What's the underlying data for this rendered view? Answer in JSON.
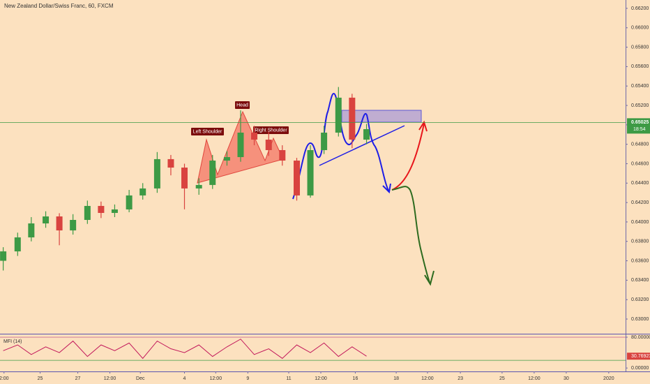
{
  "chart_data": {
    "type": "candlestick",
    "title": "New Zealand Dollar/Swiss Franc, 60, FXCM",
    "x": [
      4,
      22,
      39,
      57,
      74,
      91,
      109,
      126,
      143,
      161,
      178,
      196,
      213,
      230,
      248,
      265,
      283,
      300,
      317,
      335,
      352,
      370,
      387,
      404,
      422,
      439,
      457
    ],
    "open": [
      0.636,
      0.63697,
      0.63841,
      0.63985,
      0.64057,
      0.63913,
      0.64021,
      0.64165,
      0.64093,
      0.64129,
      0.64273,
      0.64345,
      0.64647,
      0.6456,
      0.64345,
      0.64381,
      0.64632,
      0.64668,
      0.6492,
      0.64848,
      0.6474,
      0.64632,
      0.64273,
      0.6474,
      0.6492,
      0.6528,
      0.64848
    ],
    "high": [
      0.6374,
      0.6389,
      0.6405,
      0.6411,
      0.6409,
      0.6408,
      0.6422,
      0.6421,
      0.6418,
      0.6433,
      0.644,
      0.6472,
      0.6469,
      0.646,
      0.6445,
      0.6469,
      0.6473,
      0.6515,
      0.6499,
      0.6493,
      0.6479,
      0.6466,
      0.6479,
      0.6499,
      0.6539,
      0.6532,
      0.6501
    ],
    "low": [
      0.635,
      0.6365,
      0.638,
      0.6394,
      0.6376,
      0.6387,
      0.6398,
      0.6404,
      0.6405,
      0.641,
      0.6423,
      0.643,
      0.6448,
      0.6413,
      0.6428,
      0.6434,
      0.6458,
      0.6462,
      0.6479,
      0.6468,
      0.6458,
      0.6422,
      0.6425,
      0.647,
      0.6488,
      0.6476,
      0.648
    ],
    "close": [
      0.63697,
      0.63841,
      0.63985,
      0.64057,
      0.63913,
      0.64021,
      0.64165,
      0.64093,
      0.64129,
      0.64273,
      0.64345,
      0.64647,
      0.6456,
      0.64345,
      0.64381,
      0.64632,
      0.64668,
      0.6492,
      0.64848,
      0.6474,
      0.64632,
      0.64273,
      0.6474,
      0.6492,
      0.6528,
      0.64848,
      0.64956
    ],
    "up_color": "#3d9a45",
    "down_color": "#d9433f",
    "xlim": [
      0,
      780
    ],
    "xticks": [
      {
        "value": 5,
        "label": "2:00"
      },
      {
        "value": 50,
        "label": "25"
      },
      {
        "value": 97,
        "label": "27"
      },
      {
        "value": 137,
        "label": "12:00"
      },
      {
        "value": 175,
        "label": "Dec"
      },
      {
        "value": 230,
        "label": "4"
      },
      {
        "value": 269,
        "label": "12:00"
      },
      {
        "value": 309,
        "label": "9"
      },
      {
        "value": 360,
        "label": "11"
      },
      {
        "value": 400,
        "label": "12:00"
      },
      {
        "value": 443,
        "label": "16"
      },
      {
        "value": 494,
        "label": "18"
      },
      {
        "value": 533,
        "label": "12:00"
      },
      {
        "value": 574,
        "label": "23"
      },
      {
        "value": 626,
        "label": "25"
      },
      {
        "value": 666,
        "label": "12:00"
      },
      {
        "value": 706,
        "label": "30"
      },
      {
        "value": 759,
        "label": "2020"
      }
    ],
    "ylim": [
      0.62856,
      0.66286
    ],
    "yticks": [
      {
        "value": 0.63,
        "label": "0.63000"
      },
      {
        "value": 0.632,
        "label": "0.63200"
      },
      {
        "value": 0.634,
        "label": "0.63400"
      },
      {
        "value": 0.636,
        "label": "0.63600"
      },
      {
        "value": 0.638,
        "label": "0.63800"
      },
      {
        "value": 0.64,
        "label": "0.64000"
      },
      {
        "value": 0.642,
        "label": "0.64200"
      },
      {
        "value": 0.644,
        "label": "0.64400"
      },
      {
        "value": 0.646,
        "label": "0.64600"
      },
      {
        "value": 0.648,
        "label": "0.64800"
      },
      {
        "value": 0.65,
        "label": "0.65000"
      },
      {
        "value": 0.652,
        "label": "0.65200"
      },
      {
        "value": 0.654,
        "label": "0.65400"
      },
      {
        "value": 0.656,
        "label": "0.65600"
      },
      {
        "value": 0.658,
        "label": "0.65800"
      },
      {
        "value": 0.66,
        "label": "0.66000"
      },
      {
        "value": 0.662,
        "label": "0.66200"
      }
    ],
    "last_price": {
      "value": 0.65025,
      "label": "0.65025"
    },
    "countdown": "18:54",
    "annotations": {
      "left_shoulder": "Left Shoulder",
      "head": "Head",
      "right_shoulder": "Right Shoulder"
    },
    "indicator": {
      "name": "MFI (14)",
      "color": "#c2185b",
      "values": [
        45,
        60,
        35,
        55,
        40,
        70,
        30,
        60,
        45,
        65,
        25,
        70,
        50,
        40,
        60,
        30,
        55,
        75,
        35,
        50,
        25,
        60,
        40,
        65,
        30,
        55,
        30.76923
      ],
      "last_value_label": "30.76923",
      "ylim": [
        -7,
        89
      ],
      "yticks": [
        {
          "value": 80,
          "label": "80.00000"
        },
        {
          "value": 0,
          "label": "0.00000"
        }
      ],
      "bands": [
        80,
        20
      ]
    }
  }
}
